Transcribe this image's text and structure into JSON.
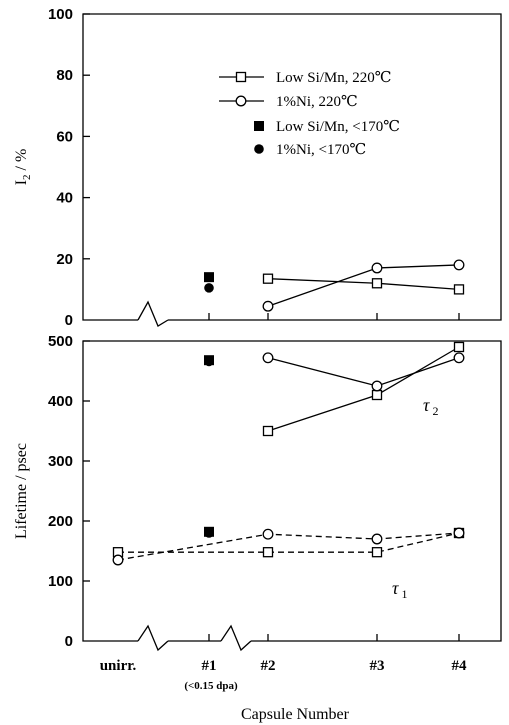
{
  "chart_data": [
    {
      "panel": "top",
      "type": "line",
      "ylabel": "I",
      "ylabel_sub": "2",
      "ylabel_unit": " / %",
      "ylim": [
        0,
        100
      ],
      "yticks": [
        "0",
        "20",
        "40",
        "60",
        "80",
        "100"
      ],
      "series": [
        {
          "name": "Low Si/Mn, 220℃",
          "marker": "square-open",
          "line": "solid",
          "points": [
            {
              "x": "#2",
              "y": 13.5
            },
            {
              "x": "#3",
              "y": 12
            },
            {
              "x": "#4",
              "y": 10
            }
          ]
        },
        {
          "name": "1%Ni, 220℃",
          "marker": "circle-open",
          "line": "solid",
          "points": [
            {
              "x": "#2",
              "y": 4.5
            },
            {
              "x": "#3",
              "y": 17
            },
            {
              "x": "#4",
              "y": 18
            }
          ]
        },
        {
          "name": "Low Si/Mn, <170℃",
          "marker": "square-filled",
          "line": "none",
          "points": [
            {
              "x": "#1",
              "y": 14
            }
          ]
        },
        {
          "name": "1%Ni, <170℃",
          "marker": "circle-filled",
          "line": "none",
          "points": [
            {
              "x": "#1",
              "y": 10.5
            }
          ]
        }
      ]
    },
    {
      "panel": "bottom",
      "type": "line",
      "ylabel": "Lifetime / psec",
      "ylim": [
        0,
        500
      ],
      "yticks": [
        "0",
        "100",
        "200",
        "300",
        "400",
        "500"
      ],
      "annotations": [
        {
          "text": "τ",
          "sub": "2",
          "x": "#3.5",
          "y": 385
        },
        {
          "text": "τ",
          "sub": "1",
          "x": "#3.3",
          "y": 85
        }
      ],
      "series": [
        {
          "group": "tau2",
          "marker": "square-open",
          "line": "solid",
          "points": [
            {
              "x": "#2",
              "y": 350
            },
            {
              "x": "#3",
              "y": 410
            },
            {
              "x": "#4",
              "y": 490
            }
          ]
        },
        {
          "group": "tau2",
          "marker": "circle-open",
          "line": "solid",
          "points": [
            {
              "x": "#2",
              "y": 472
            },
            {
              "x": "#3",
              "y": 425
            },
            {
              "x": "#4",
              "y": 472
            }
          ]
        },
        {
          "group": "tau2",
          "marker": "square-filled",
          "line": "none",
          "points": [
            {
              "x": "#1",
              "y": 468
            }
          ]
        },
        {
          "group": "tau2",
          "marker": "circle-filled",
          "line": "none",
          "points": [
            {
              "x": "#1",
              "y": 466
            }
          ]
        },
        {
          "group": "tau1",
          "marker": "square-open",
          "line": "dashed",
          "points": [
            {
              "x": "unirr.",
              "y": 148
            },
            {
              "x": "#2",
              "y": 148
            },
            {
              "x": "#3",
              "y": 148
            },
            {
              "x": "#4",
              "y": 180
            }
          ]
        },
        {
          "group": "tau1",
          "marker": "circle-open",
          "line": "dashed",
          "points": [
            {
              "x": "unirr.",
              "y": 135
            },
            {
              "x": "#2",
              "y": 178
            },
            {
              "x": "#3",
              "y": 170
            },
            {
              "x": "#4",
              "y": 180
            }
          ]
        },
        {
          "group": "tau1",
          "marker": "square-filled",
          "line": "none",
          "points": [
            {
              "x": "#1",
              "y": 182
            }
          ]
        },
        {
          "group": "tau1",
          "marker": "circle-filled",
          "line": "none",
          "points": [
            {
              "x": "#1",
              "y": 180
            }
          ]
        }
      ]
    }
  ],
  "x_axis": {
    "categories": [
      "unirr.",
      "#1",
      "#2",
      "#3",
      "#4"
    ],
    "category_note": "(<0.15 dpa)",
    "label": "Capsule Number"
  }
}
